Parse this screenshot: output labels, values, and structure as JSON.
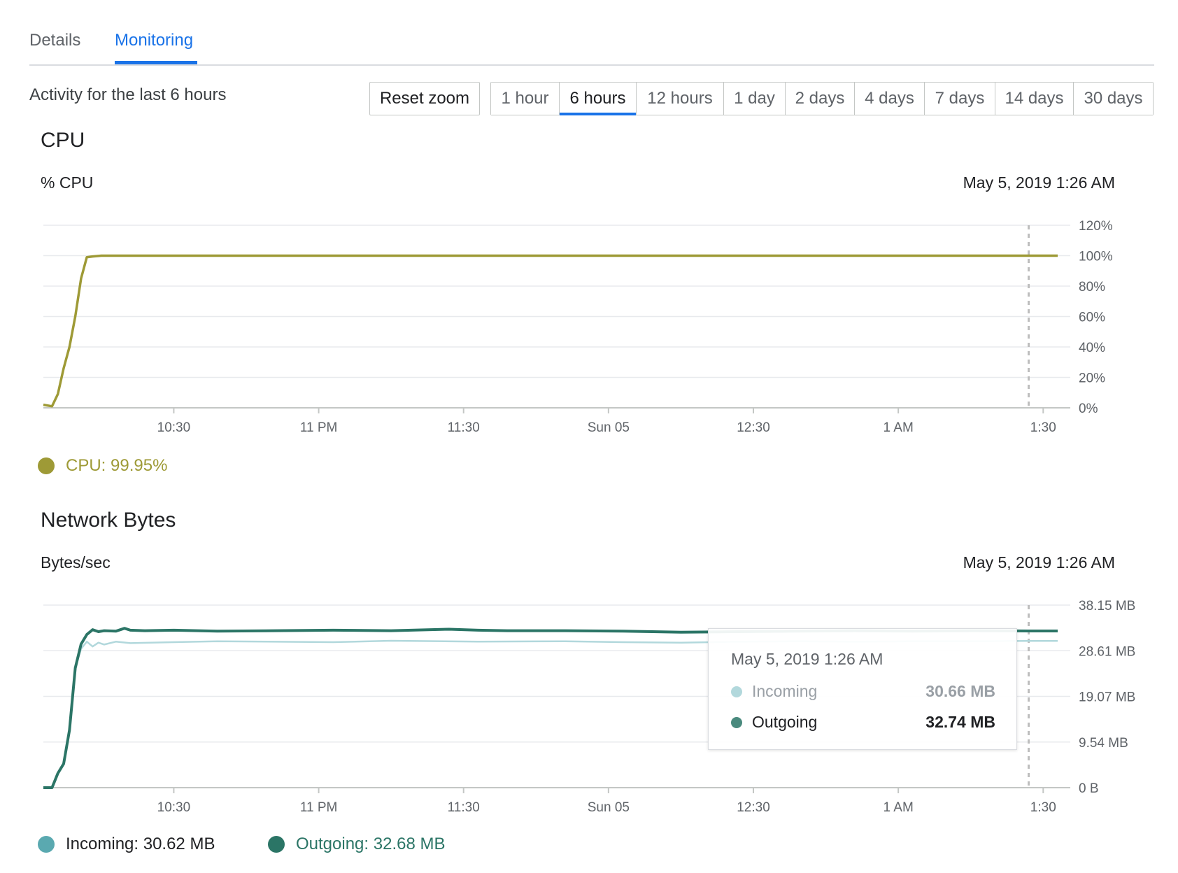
{
  "tabs": [
    {
      "label": "Details",
      "active": false
    },
    {
      "label": "Monitoring",
      "active": true
    }
  ],
  "activity_label": "Activity for the last 6 hours",
  "reset_zoom_label": "Reset zoom",
  "time_ranges": [
    {
      "label": "1 hour",
      "selected": false
    },
    {
      "label": "6 hours",
      "selected": true
    },
    {
      "label": "12 hours",
      "selected": false
    },
    {
      "label": "1 day",
      "selected": false
    },
    {
      "label": "2 days",
      "selected": false
    },
    {
      "label": "4 days",
      "selected": false
    },
    {
      "label": "7 days",
      "selected": false
    },
    {
      "label": "14 days",
      "selected": false
    },
    {
      "label": "30 days",
      "selected": false
    }
  ],
  "colors": {
    "accent": "#1a73e8",
    "cpu": "#9e9a36",
    "incoming_line": "#b2d8dc",
    "incoming_legend": "#5aa9b0",
    "outgoing": "#2b7566",
    "grid": "#e8eaed",
    "hover_line": "#bdbdbd"
  },
  "chart_data": [
    {
      "type": "line",
      "title": "CPU",
      "ylabel": "% CPU",
      "hover_time": "May 5, 2019 1:26 AM",
      "x_ticks": [
        "10:30",
        "11 PM",
        "11:30",
        "Sun 05",
        "12:30",
        "1 AM",
        "1:30"
      ],
      "y_ticks": [
        "120%",
        "100%",
        "80%",
        "60%",
        "40%",
        "20%",
        "0%"
      ],
      "ylim": [
        0,
        120
      ],
      "x_range_minutes": [
        0,
        350
      ],
      "hover_x_minute": 340,
      "legend": [
        {
          "label": "CPU: 99.95%",
          "color_key": "cpu"
        }
      ],
      "series": [
        {
          "name": "CPU",
          "color_key": "cpu",
          "x": [
            0,
            3,
            5,
            7,
            9,
            11,
            13,
            15,
            17,
            20,
            25,
            35,
            350
          ],
          "y": [
            2,
            1,
            9,
            26,
            40,
            60,
            85,
            99,
            99.5,
            100,
            100,
            100,
            100
          ]
        }
      ]
    },
    {
      "type": "line",
      "title": "Network Bytes",
      "ylabel": "Bytes/sec",
      "hover_time": "May 5, 2019 1:26 AM",
      "x_ticks": [
        "10:30",
        "11 PM",
        "11:30",
        "Sun 05",
        "12:30",
        "1 AM",
        "1:30"
      ],
      "y_ticks": [
        "38.15 MB",
        "28.61 MB",
        "19.07 MB",
        "9.54 MB",
        "0 B"
      ],
      "ylim": [
        0,
        38.15
      ],
      "x_range_minutes": [
        0,
        350
      ],
      "hover_x_minute": 340,
      "legend": [
        {
          "label": "Incoming: 30.62 MB",
          "color_key": "incoming_legend"
        },
        {
          "label": "Outgoing: 32.68 MB",
          "color_key": "outgoing"
        }
      ],
      "series": [
        {
          "name": "Incoming",
          "color_key": "incoming_line",
          "x": [
            0,
            3,
            5,
            7,
            9,
            11,
            13,
            15,
            17,
            19,
            21,
            25,
            30,
            45,
            60,
            100,
            120,
            150,
            180,
            200,
            220,
            240,
            260,
            280,
            300,
            320,
            340,
            350
          ],
          "y": [
            0,
            0,
            3,
            5,
            12,
            25,
            29,
            30.5,
            29.5,
            30.3,
            29.9,
            30.5,
            30.2,
            30.4,
            30.6,
            30.4,
            30.7,
            30.5,
            30.6,
            30.4,
            30.3,
            30.5,
            30.6,
            30.5,
            30.6,
            30.6,
            30.66,
            30.66
          ]
        },
        {
          "name": "Outgoing",
          "color_key": "outgoing",
          "x": [
            0,
            3,
            5,
            7,
            9,
            11,
            13,
            15,
            17,
            19,
            21,
            25,
            28,
            30,
            35,
            45,
            60,
            80,
            100,
            120,
            140,
            150,
            160,
            180,
            200,
            220,
            240,
            260,
            280,
            300,
            320,
            340,
            350
          ],
          "y": [
            0,
            0,
            3,
            5,
            12,
            25,
            30,
            32,
            33,
            32.6,
            32.8,
            32.7,
            33.3,
            32.9,
            32.8,
            32.9,
            32.7,
            32.8,
            32.9,
            32.8,
            33.1,
            32.9,
            32.8,
            32.8,
            32.7,
            32.5,
            32.6,
            32.7,
            32.8,
            32.7,
            32.8,
            32.74,
            32.74
          ]
        }
      ],
      "tooltip": {
        "title": "May 5, 2019 1:26 AM",
        "rows": [
          {
            "name": "Incoming",
            "value": "30.66 MB",
            "color_key": "incoming_line"
          },
          {
            "name": "Outgoing",
            "value": "32.74 MB",
            "color_key": "outgoing"
          }
        ]
      }
    }
  ]
}
